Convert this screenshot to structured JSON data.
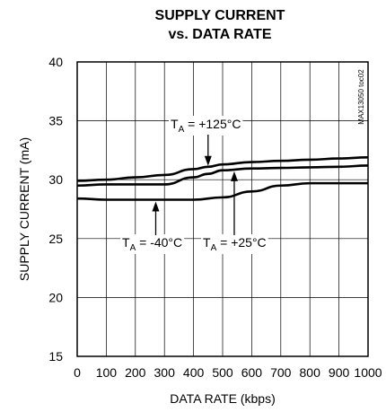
{
  "chart_data": {
    "type": "line",
    "title_line1": "SUPPLY CURRENT",
    "title_line2": "vs. DATA RATE",
    "xlabel": "DATA RATE (kbps)",
    "ylabel": "SUPPLY CURRENT (mA)",
    "xlim": [
      0,
      1000
    ],
    "ylim": [
      15,
      40
    ],
    "xticks": [
      0,
      100,
      200,
      300,
      400,
      500,
      600,
      700,
      800,
      900,
      1000
    ],
    "yticks": [
      15,
      20,
      25,
      30,
      35,
      40
    ],
    "grid": true,
    "code": "MAX13050 toc02",
    "series": [
      {
        "name": "TA = +125°C",
        "x": [
          0,
          100,
          200,
          300,
          400,
          450,
          500,
          600,
          700,
          800,
          900,
          1000
        ],
        "y": [
          29.9,
          30.0,
          30.2,
          30.4,
          30.9,
          31.1,
          31.3,
          31.5,
          31.6,
          31.7,
          31.8,
          31.9
        ]
      },
      {
        "name": "TA = +25°C",
        "x": [
          0,
          100,
          200,
          300,
          400,
          450,
          500,
          600,
          700,
          800,
          900,
          1000
        ],
        "y": [
          29.5,
          29.6,
          29.6,
          29.6,
          30.2,
          30.5,
          30.8,
          30.95,
          31.0,
          31.05,
          31.1,
          31.2
        ]
      },
      {
        "name": "TA = -40°C",
        "x": [
          0,
          100,
          200,
          300,
          400,
          500,
          600,
          700,
          800,
          900,
          1000
        ],
        "y": [
          28.4,
          28.3,
          28.3,
          28.3,
          28.3,
          28.5,
          29.0,
          29.5,
          29.7,
          29.7,
          29.7
        ]
      }
    ],
    "annotations": [
      {
        "id": "a125",
        "main": "T",
        "sub": "A",
        "rest": " = +125°C",
        "series": 0,
        "arrow_x": 450
      },
      {
        "id": "a40",
        "main": "T",
        "sub": "A",
        "rest": " = -40°C",
        "series": 2,
        "arrow_x": 270
      },
      {
        "id": "a25",
        "main": "T",
        "sub": "A",
        "rest": " = +25°C",
        "series": 1,
        "arrow_x": 540
      }
    ]
  }
}
